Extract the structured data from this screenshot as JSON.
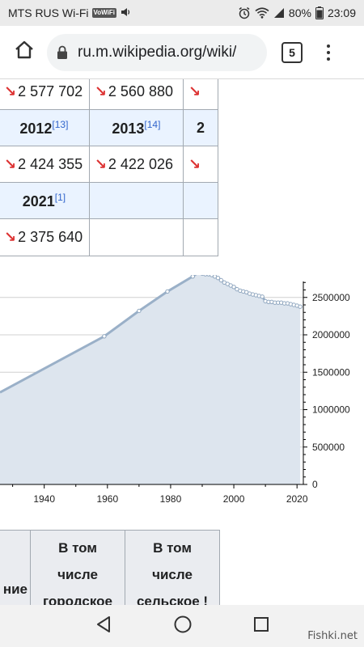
{
  "status_bar": {
    "carrier": "MTS RUS Wi-Fi",
    "volte": "VoWiFi",
    "battery": "80%",
    "time": "23:09",
    "icons": [
      "volume-icon",
      "alarm-icon",
      "wifi-icon",
      "signal-icon",
      "battery-icon"
    ]
  },
  "browser": {
    "url": "ru.m.wikipedia.org/wiki/",
    "tab_count": "5",
    "icons": [
      "home-icon",
      "lock-icon",
      "menu-icon"
    ]
  },
  "population_table": {
    "rows": [
      {
        "type": "values",
        "cells": [
          "2 577 702",
          "2 560 880",
          ""
        ]
      },
      {
        "type": "years",
        "cells": [
          {
            "year": "2012",
            "ref": "[13]"
          },
          {
            "year": "2013",
            "ref": "[14]"
          },
          {
            "year": "2",
            "ref": ""
          }
        ]
      },
      {
        "type": "values",
        "cells": [
          "2 424 355",
          "2 422 026",
          ""
        ]
      },
      {
        "type": "years",
        "cells": [
          {
            "year": "2021",
            "ref": "[1]"
          },
          {
            "year": "",
            "ref": ""
          },
          {
            "year": "",
            "ref": ""
          }
        ]
      },
      {
        "type": "values",
        "cells": [
          "2 375 640",
          "",
          ""
        ]
      }
    ],
    "arrow": "↘",
    "arrow_color": "#dd3333"
  },
  "chart_data": {
    "type": "area",
    "x_ticks": [
      "1940",
      "1960",
      "1980",
      "2000",
      "2020"
    ],
    "y_ticks": [
      "0",
      "500000",
      "1000000",
      "1500000",
      "2000000",
      "2500000"
    ],
    "xlim": [
      1926,
      2022
    ],
    "ylim": [
      0,
      2800000
    ],
    "line_color": "#9ab0c8",
    "fill_color": "#dde5ee",
    "points": [
      [
        1926,
        1230000
      ],
      [
        1959,
        1980000
      ],
      [
        1970,
        2320000
      ],
      [
        1979,
        2580000
      ],
      [
        1987,
        2780000
      ],
      [
        1989,
        2840000
      ],
      [
        1990,
        2820000
      ],
      [
        1991,
        2810000
      ],
      [
        1992,
        2810000
      ],
      [
        1993,
        2800000
      ],
      [
        1994,
        2780000
      ],
      [
        1995,
        2760000
      ],
      [
        1996,
        2730000
      ],
      [
        1997,
        2700000
      ],
      [
        1998,
        2680000
      ],
      [
        1999,
        2660000
      ],
      [
        2000,
        2640000
      ],
      [
        2001,
        2610000
      ],
      [
        2002,
        2590000
      ],
      [
        2003,
        2580000
      ],
      [
        2004,
        2570000
      ],
      [
        2005,
        2550000
      ],
      [
        2006,
        2540000
      ],
      [
        2007,
        2530000
      ],
      [
        2008,
        2520000
      ],
      [
        2009,
        2510000
      ],
      [
        2010,
        2450000
      ],
      [
        2011,
        2440000
      ],
      [
        2012,
        2440000
      ],
      [
        2013,
        2430000
      ],
      [
        2014,
        2430000
      ],
      [
        2015,
        2430000
      ],
      [
        2016,
        2420000
      ],
      [
        2017,
        2420000
      ],
      [
        2018,
        2410000
      ],
      [
        2019,
        2400000
      ],
      [
        2020,
        2390000
      ],
      [
        2021,
        2376000
      ]
    ]
  },
  "lower_table": {
    "headers": [
      "ние",
      "В том числе городское",
      "В том числе сельское !"
    ],
    "col2_lines": [
      "В том",
      "числе",
      "городское"
    ],
    "col3_lines": [
      "В том",
      "числе",
      "сельское !"
    ]
  },
  "nav_bar": {
    "icons": [
      "back-icon",
      "home-circle-icon",
      "recents-icon"
    ]
  },
  "watermark": "Fishki.net"
}
